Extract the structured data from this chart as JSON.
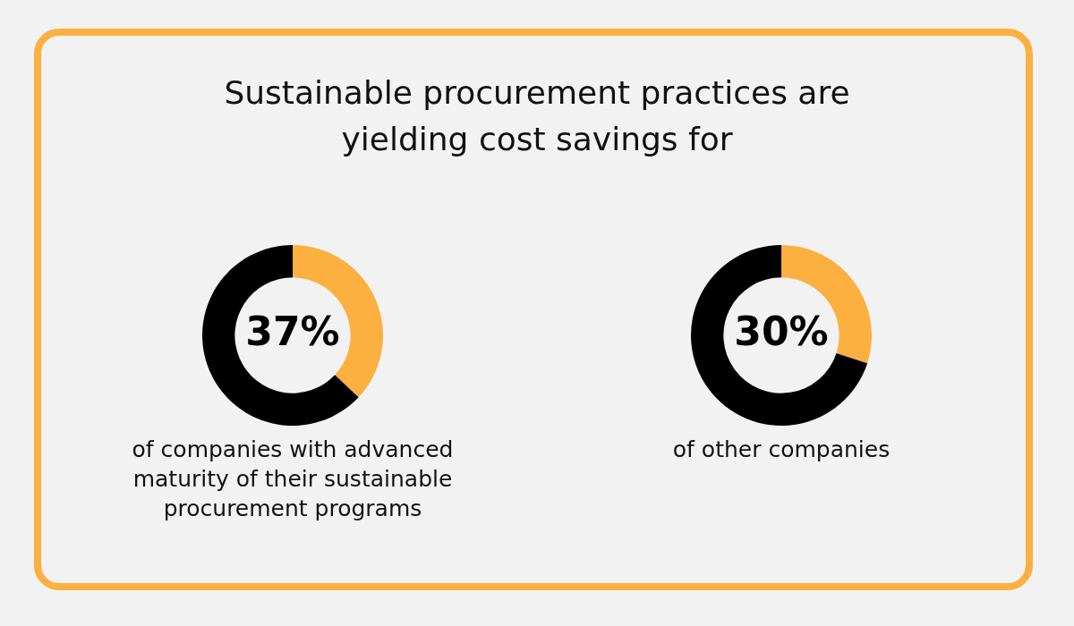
{
  "chart_data": [
    {
      "type": "donut",
      "title": "Sustainable procurement practices are yielding cost savings for",
      "categories": [
        null,
        null
      ],
      "values": [
        37,
        63
      ],
      "colors": [
        "#fbb040",
        "#000000"
      ],
      "value_labels": [
        "37%",
        null
      ],
      "annotations": [
        "of companies with advanced maturity of their sustainable procurement programs"
      ]
    },
    {
      "type": "donut",
      "categories": [
        null,
        null
      ],
      "values": [
        30,
        70
      ],
      "colors": [
        "#fbb040",
        "#000000"
      ],
      "value_labels": [
        "30%",
        null
      ],
      "annotations": [
        "of other companies"
      ]
    }
  ]
}
